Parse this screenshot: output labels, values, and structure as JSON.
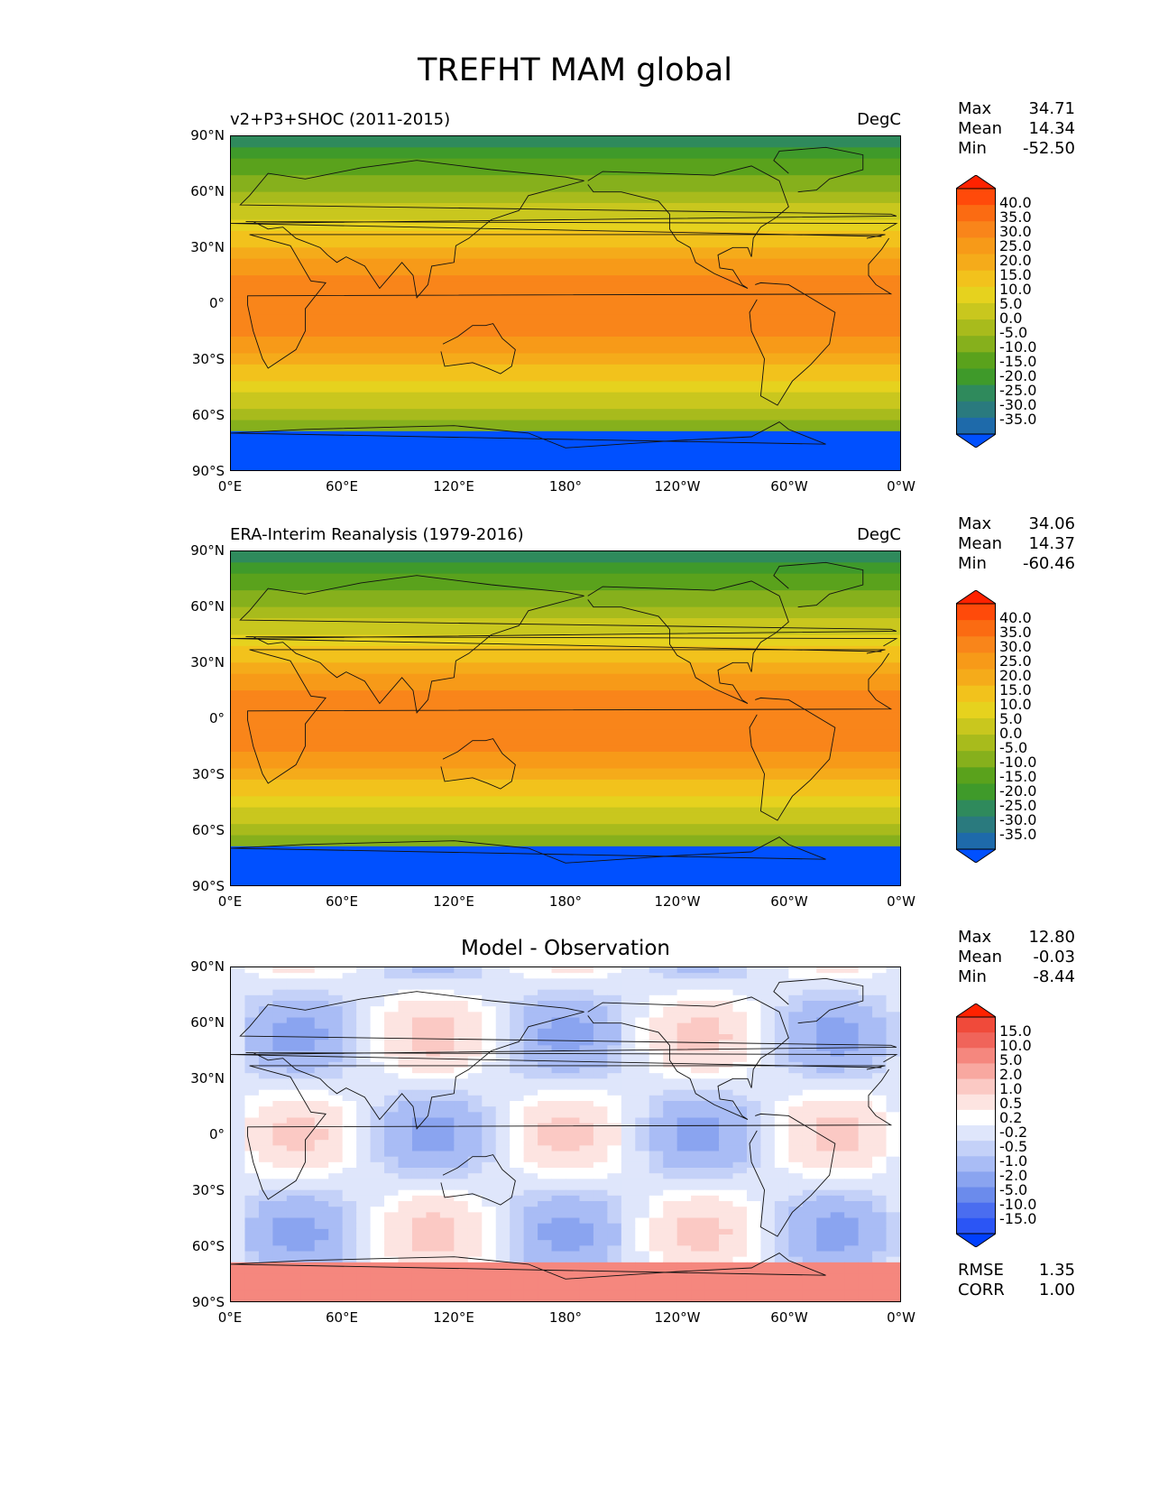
{
  "title": "TREFHT MAM global",
  "lat_ticks": [
    "90°N",
    "60°N",
    "30°N",
    "0°",
    "30°S",
    "60°S",
    "90°S"
  ],
  "lon_ticks": [
    "0°E",
    "60°E",
    "120°E",
    "180°",
    "120°W",
    "60°W",
    "0°W"
  ],
  "panels": [
    {
      "id": "model",
      "title_left": "v2+P3+SHOC (2011-2015)",
      "title_right": "DegC",
      "title_center": "",
      "stats": [
        {
          "label": "Max",
          "value": "34.71"
        },
        {
          "label": "Mean",
          "value": "14.34"
        },
        {
          "label": "Min",
          "value": "-52.50"
        }
      ],
      "colorbar_levels": [
        "40.0",
        "35.0",
        "30.0",
        "25.0",
        "20.0",
        "15.0",
        "10.0",
        "5.0",
        "0.0",
        "-5.0",
        "-10.0",
        "-15.0",
        "-20.0",
        "-25.0",
        "-30.0",
        "-35.0"
      ],
      "colorbar_colors": [
        "#ff2200",
        "#ff4a0a",
        "#fb6b12",
        "#f9851a",
        "#f79a18",
        "#f5ab1a",
        "#f2c21c",
        "#e6d21e",
        "#c9c71e",
        "#a8bb1c",
        "#86b01c",
        "#5aa21c",
        "#3f9a2a",
        "#2f8a5c",
        "#2a7a7e",
        "#1e6aaa",
        "#0050ff"
      ]
    },
    {
      "id": "obs",
      "title_left": "ERA-Interim Reanalysis (1979-2016)",
      "title_right": "DegC",
      "title_center": "",
      "stats": [
        {
          "label": "Max",
          "value": "34.06"
        },
        {
          "label": "Mean",
          "value": "14.37"
        },
        {
          "label": "Min",
          "value": "-60.46"
        }
      ],
      "colorbar_levels": [
        "40.0",
        "35.0",
        "30.0",
        "25.0",
        "20.0",
        "15.0",
        "10.0",
        "5.0",
        "0.0",
        "-5.0",
        "-10.0",
        "-15.0",
        "-20.0",
        "-25.0",
        "-30.0",
        "-35.0"
      ],
      "colorbar_colors": [
        "#ff2200",
        "#ff4a0a",
        "#fb6b12",
        "#f9851a",
        "#f79a18",
        "#f5ab1a",
        "#f2c21c",
        "#e6d21e",
        "#c9c71e",
        "#a8bb1c",
        "#86b01c",
        "#5aa21c",
        "#3f9a2a",
        "#2f8a5c",
        "#2a7a7e",
        "#1e6aaa",
        "#0050ff"
      ]
    },
    {
      "id": "diff",
      "title_left": "",
      "title_right": "",
      "title_center": "Model - Observation",
      "stats": [
        {
          "label": "Max",
          "value": "12.80"
        },
        {
          "label": "Mean",
          "value": "-0.03"
        },
        {
          "label": "Min",
          "value": "-8.44"
        }
      ],
      "colorbar_levels": [
        "15.0",
        "10.0",
        "5.0",
        "2.0",
        "1.0",
        "0.5",
        "0.2",
        "-0.2",
        "-0.5",
        "-1.0",
        "-2.0",
        "-5.0",
        "-10.0",
        "-15.0"
      ],
      "colorbar_colors": [
        "#ff2200",
        "#f04a3a",
        "#f0645a",
        "#f5877e",
        "#f8a8a0",
        "#fbc9c4",
        "#fde4e1",
        "#ffffff",
        "#dfe6fb",
        "#c4d1f8",
        "#a9bcf5",
        "#8aa4f0",
        "#6b8bec",
        "#4a6df0",
        "#2b55f5",
        "#0040ff"
      ],
      "rmse_label": "RMSE",
      "rmse_value": "1.35",
      "corr_label": "CORR",
      "corr_value": "1.00"
    }
  ],
  "chart_data": [
    {
      "type": "heatmap",
      "title": "v2+P3+SHOC (2011-2015)",
      "units": "DegC",
      "xlabel": "",
      "ylabel": "",
      "xlim": [
        0,
        360
      ],
      "ylim": [
        -90,
        90
      ],
      "x_ticks": [
        "0°E",
        "60°E",
        "120°E",
        "180°",
        "120°W",
        "60°W",
        "0°W"
      ],
      "y_ticks": [
        "90°N",
        "60°N",
        "30°N",
        "0°",
        "30°S",
        "60°S",
        "90°S"
      ],
      "levels": [
        -35,
        -30,
        -25,
        -20,
        -15,
        -10,
        -5,
        0,
        5,
        10,
        15,
        20,
        25,
        30,
        35,
        40
      ],
      "max": 34.71,
      "mean": 14.34,
      "min": -52.5
    },
    {
      "type": "heatmap",
      "title": "ERA-Interim Reanalysis (1979-2016)",
      "units": "DegC",
      "xlabel": "",
      "ylabel": "",
      "xlim": [
        0,
        360
      ],
      "ylim": [
        -90,
        90
      ],
      "x_ticks": [
        "0°E",
        "60°E",
        "120°E",
        "180°",
        "120°W",
        "60°W",
        "0°W"
      ],
      "y_ticks": [
        "90°N",
        "60°N",
        "30°N",
        "0°",
        "30°S",
        "60°S",
        "90°S"
      ],
      "levels": [
        -35,
        -30,
        -25,
        -20,
        -15,
        -10,
        -5,
        0,
        5,
        10,
        15,
        20,
        25,
        30,
        35,
        40
      ],
      "max": 34.06,
      "mean": 14.37,
      "min": -60.46
    },
    {
      "type": "heatmap",
      "title": "Model - Observation",
      "xlabel": "",
      "ylabel": "",
      "xlim": [
        0,
        360
      ],
      "ylim": [
        -90,
        90
      ],
      "x_ticks": [
        "0°E",
        "60°E",
        "120°E",
        "180°",
        "120°W",
        "60°W",
        "0°W"
      ],
      "y_ticks": [
        "90°N",
        "60°N",
        "30°N",
        "0°",
        "30°S",
        "60°S",
        "90°S"
      ],
      "levels": [
        -15,
        -10,
        -5,
        -2,
        -1,
        -0.5,
        -0.2,
        0.2,
        0.5,
        1,
        2,
        5,
        10,
        15
      ],
      "max": 12.8,
      "mean": -0.03,
      "min": -8.44,
      "rmse": 1.35,
      "corr": 1.0
    }
  ]
}
